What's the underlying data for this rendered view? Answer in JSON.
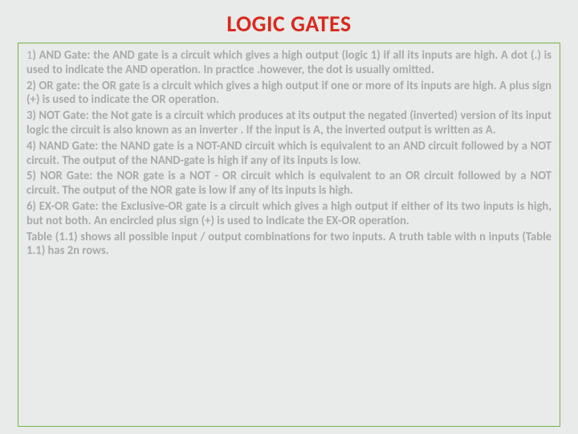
{
  "colors": {
    "background": "#e8ebe9",
    "title": "#d82a1f",
    "body_text": "#a9a9a9",
    "box_border": "#79b24a"
  },
  "title": "LOGIC GATES",
  "paragraphs": [
    {
      "num": "1",
      "rest": ") AND Gate: the AND gate is a circuit which gives a high output (logic 1)   if all its inputs are high. A dot (.) is used to indicate the AND operation. In practice .however, the dot is usually omitted."
    },
    {
      "num": "",
      "rest": "2) OR gate: the OR gate is a circuit which gives a high output if one or more of its inputs are high. A plus sign (+) is used to indicate the OR operation."
    },
    {
      "num": "",
      "rest": "3) NOT Gate: the Not gate is a circuit which produces at its output the negated (inverted) version of its input logic  the circuit is also known as an inverter . If the input is A, the inverted output is written as A."
    },
    {
      "num": "",
      "rest": "4) NAND Gate: the NAND gate is a NOT-AND circuit which is equivalent to an AND circuit followed by a NOT circuit. The output of the NAND-gate is high if any of its inputs is low."
    },
    {
      "num": "",
      "rest": "5) NOR Gate: the NOR gate is a NOT - OR circuit which is equivalent to an OR circuit followed by a NOT circuit. The output of the NOR gate is low if any of its inputs is high."
    },
    {
      "num": "",
      "rest": "6) EX-OR Gate: the   Exclusive-OR gate is a circuit which gives a high output if either of its two inputs is high, but not both. An encircled plus sign (+) is used to indicate the EX-OR operation."
    },
    {
      "num": "",
      "rest": "Table (1.1) shows all possible input / output combinations for two inputs. A truth table with n inputs (Table 1.1) has 2n rows."
    }
  ]
}
